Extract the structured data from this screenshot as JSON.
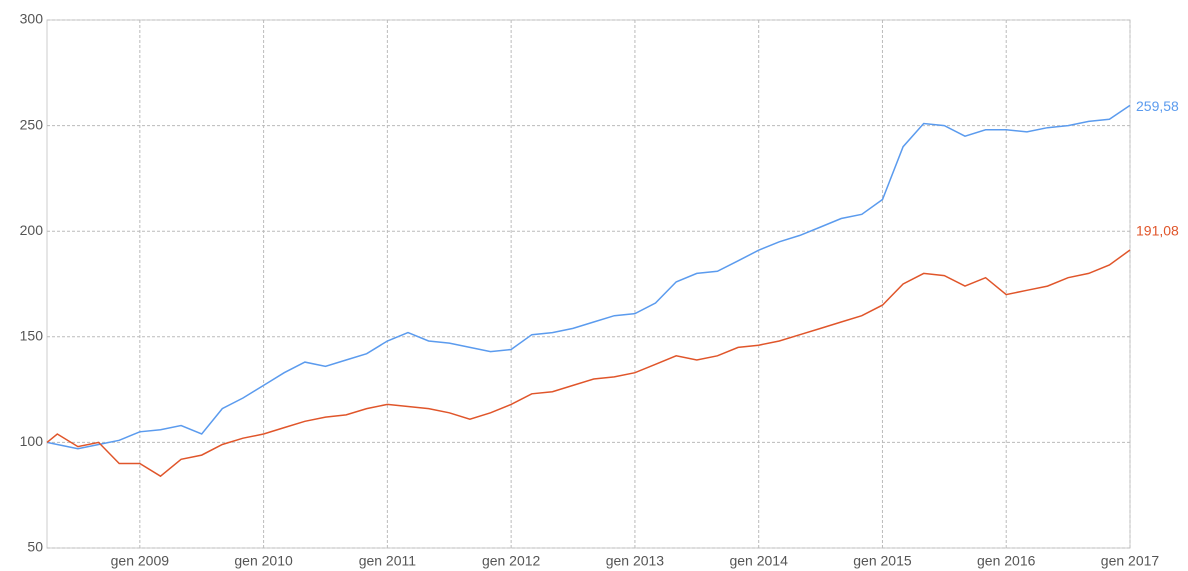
{
  "chart_data": {
    "type": "line",
    "x": [
      "2008-04",
      "2008-05",
      "2008-07",
      "2008-09",
      "2008-11",
      "2009-01",
      "2009-03",
      "2009-05",
      "2009-07",
      "2009-09",
      "2009-11",
      "2010-01",
      "2010-03",
      "2010-05",
      "2010-07",
      "2010-09",
      "2010-11",
      "2011-01",
      "2011-03",
      "2011-05",
      "2011-07",
      "2011-09",
      "2011-11",
      "2012-01",
      "2012-03",
      "2012-05",
      "2012-07",
      "2012-09",
      "2012-11",
      "2013-01",
      "2013-03",
      "2013-05",
      "2013-07",
      "2013-09",
      "2013-11",
      "2014-01",
      "2014-03",
      "2014-05",
      "2014-07",
      "2014-09",
      "2014-11",
      "2015-01",
      "2015-03",
      "2015-05",
      "2015-07",
      "2015-09",
      "2015-11",
      "2016-01",
      "2016-03",
      "2016-05",
      "2016-07",
      "2016-09",
      "2016-11",
      "2017-01"
    ],
    "series": [
      {
        "color": "#5b9bee",
        "values": [
          100,
          99,
          97,
          99,
          101,
          105,
          106,
          108,
          104,
          116,
          121,
          127,
          133,
          138,
          136,
          139,
          142,
          148,
          152,
          148,
          147,
          145,
          143,
          144,
          151,
          152,
          154,
          157,
          160,
          161,
          166,
          176,
          180,
          181,
          186,
          191,
          195,
          198,
          202,
          206,
          208,
          215,
          240,
          251,
          250,
          245,
          248,
          248,
          247,
          249,
          250,
          252,
          253,
          259.58
        ],
        "value_labels": [
          null,
          null,
          null,
          null,
          null,
          null,
          null,
          null,
          null,
          null,
          null,
          null,
          null,
          null,
          null,
          null,
          null,
          null,
          null,
          null,
          null,
          null,
          null,
          null,
          null,
          null,
          null,
          null,
          null,
          null,
          null,
          null,
          null,
          null,
          null,
          null,
          null,
          null,
          null,
          null,
          null,
          null,
          null,
          null,
          null,
          null,
          null,
          null,
          null,
          null,
          null,
          null,
          null,
          "259,58"
        ]
      },
      {
        "color": "#e0552a",
        "values": [
          100,
          104,
          98,
          100,
          90,
          90,
          84,
          92,
          94,
          99,
          102,
          104,
          107,
          110,
          112,
          113,
          116,
          118,
          117,
          116,
          114,
          111,
          114,
          118,
          123,
          124,
          127,
          130,
          131,
          133,
          137,
          141,
          139,
          141,
          145,
          146,
          148,
          151,
          154,
          157,
          160,
          165,
          175,
          180,
          179,
          174,
          178,
          170,
          172,
          174,
          178,
          180,
          184,
          191.08
        ],
        "value_labels": [
          null,
          null,
          null,
          null,
          null,
          null,
          null,
          null,
          null,
          null,
          null,
          null,
          null,
          null,
          null,
          null,
          null,
          null,
          null,
          null,
          null,
          null,
          null,
          null,
          null,
          null,
          null,
          null,
          null,
          null,
          null,
          null,
          null,
          null,
          null,
          null,
          null,
          null,
          null,
          null,
          null,
          null,
          null,
          null,
          null,
          null,
          null,
          null,
          null,
          null,
          null,
          null,
          null,
          "191,08"
        ]
      }
    ],
    "xlim": [
      "2008-04",
      "2017-01"
    ],
    "xticks": [
      {
        "value": "2009-01",
        "label": "gen 2009"
      },
      {
        "value": "2010-01",
        "label": "gen 2010"
      },
      {
        "value": "2011-01",
        "label": "gen 2011"
      },
      {
        "value": "2012-01",
        "label": "gen 2012"
      },
      {
        "value": "2013-01",
        "label": "gen 2013"
      },
      {
        "value": "2014-01",
        "label": "gen 2014"
      },
      {
        "value": "2015-01",
        "label": "gen 2015"
      },
      {
        "value": "2016-01",
        "label": "gen 2016"
      },
      {
        "value": "2017-01",
        "label": "gen 2017"
      }
    ],
    "ylim": [
      50,
      300
    ],
    "yticks": [
      50,
      100,
      150,
      200,
      250,
      300
    ],
    "grid": true
  }
}
